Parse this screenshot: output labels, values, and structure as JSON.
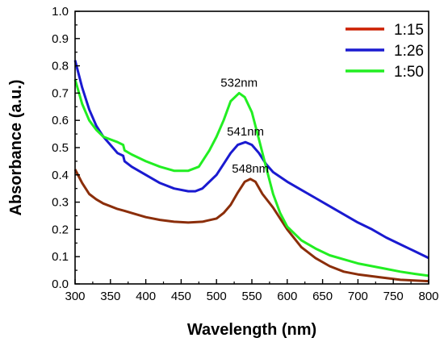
{
  "chart_data": {
    "type": "line",
    "title": "",
    "xlabel": "Wavelength (nm)",
    "ylabel": "Absorbance (a.u.)",
    "xlim": [
      300,
      800
    ],
    "ylim": [
      0.0,
      1.0
    ],
    "x_ticks": [
      "300",
      "350",
      "400",
      "450",
      "500",
      "550",
      "600",
      "650",
      "700",
      "750",
      "800"
    ],
    "y_ticks": [
      "0.0",
      "0.1",
      "0.2",
      "0.3",
      "0.4",
      "0.5",
      "0.6",
      "0.7",
      "0.8",
      "0.9",
      "1.0"
    ],
    "grid": false,
    "legend_position": "top-right",
    "series": [
      {
        "name": "1:15",
        "color": "#8B2E0A",
        "legend_color": "#cc1f00",
        "points": [
          [
            300,
            0.42
          ],
          [
            310,
            0.37
          ],
          [
            320,
            0.33
          ],
          [
            330,
            0.31
          ],
          [
            340,
            0.295
          ],
          [
            350,
            0.285
          ],
          [
            360,
            0.275
          ],
          [
            370,
            0.268
          ],
          [
            380,
            0.26
          ],
          [
            400,
            0.245
          ],
          [
            420,
            0.235
          ],
          [
            440,
            0.228
          ],
          [
            460,
            0.225
          ],
          [
            480,
            0.228
          ],
          [
            500,
            0.24
          ],
          [
            510,
            0.26
          ],
          [
            520,
            0.29
          ],
          [
            530,
            0.335
          ],
          [
            540,
            0.375
          ],
          [
            548,
            0.385
          ],
          [
            555,
            0.375
          ],
          [
            565,
            0.33
          ],
          [
            580,
            0.28
          ],
          [
            600,
            0.2
          ],
          [
            620,
            0.135
          ],
          [
            640,
            0.095
          ],
          [
            660,
            0.065
          ],
          [
            680,
            0.045
          ],
          [
            700,
            0.035
          ],
          [
            730,
            0.025
          ],
          [
            760,
            0.015
          ],
          [
            800,
            0.01
          ]
        ]
      },
      {
        "name": "1:26",
        "color": "#1a1ad0",
        "legend_color": "#1a1ad0",
        "points": [
          [
            300,
            0.82
          ],
          [
            310,
            0.72
          ],
          [
            320,
            0.64
          ],
          [
            330,
            0.58
          ],
          [
            340,
            0.54
          ],
          [
            350,
            0.51
          ],
          [
            360,
            0.48
          ],
          [
            368,
            0.47
          ],
          [
            370,
            0.45
          ],
          [
            380,
            0.43
          ],
          [
            400,
            0.4
          ],
          [
            420,
            0.37
          ],
          [
            440,
            0.35
          ],
          [
            460,
            0.34
          ],
          [
            470,
            0.34
          ],
          [
            480,
            0.35
          ],
          [
            500,
            0.4
          ],
          [
            510,
            0.44
          ],
          [
            520,
            0.48
          ],
          [
            530,
            0.51
          ],
          [
            541,
            0.52
          ],
          [
            550,
            0.51
          ],
          [
            560,
            0.48
          ],
          [
            570,
            0.44
          ],
          [
            580,
            0.41
          ],
          [
            600,
            0.375
          ],
          [
            620,
            0.345
          ],
          [
            640,
            0.315
          ],
          [
            660,
            0.285
          ],
          [
            680,
            0.255
          ],
          [
            700,
            0.225
          ],
          [
            720,
            0.2
          ],
          [
            740,
            0.17
          ],
          [
            760,
            0.145
          ],
          [
            780,
            0.12
          ],
          [
            800,
            0.095
          ]
        ]
      },
      {
        "name": "1:50",
        "color": "#22ee22",
        "legend_color": "#22ee22",
        "points": [
          [
            300,
            0.75
          ],
          [
            310,
            0.66
          ],
          [
            320,
            0.6
          ],
          [
            330,
            0.565
          ],
          [
            340,
            0.54
          ],
          [
            350,
            0.53
          ],
          [
            360,
            0.52
          ],
          [
            368,
            0.51
          ],
          [
            370,
            0.49
          ],
          [
            380,
            0.475
          ],
          [
            400,
            0.45
          ],
          [
            420,
            0.43
          ],
          [
            440,
            0.415
          ],
          [
            460,
            0.415
          ],
          [
            475,
            0.43
          ],
          [
            490,
            0.49
          ],
          [
            500,
            0.54
          ],
          [
            510,
            0.6
          ],
          [
            520,
            0.67
          ],
          [
            532,
            0.7
          ],
          [
            540,
            0.685
          ],
          [
            550,
            0.63
          ],
          [
            560,
            0.53
          ],
          [
            570,
            0.43
          ],
          [
            580,
            0.33
          ],
          [
            590,
            0.26
          ],
          [
            600,
            0.21
          ],
          [
            620,
            0.16
          ],
          [
            640,
            0.13
          ],
          [
            660,
            0.105
          ],
          [
            680,
            0.09
          ],
          [
            700,
            0.075
          ],
          [
            720,
            0.065
          ],
          [
            740,
            0.055
          ],
          [
            760,
            0.045
          ],
          [
            780,
            0.037
          ],
          [
            800,
            0.03
          ]
        ]
      }
    ],
    "annotations": [
      {
        "text": "532nm",
        "x": 532,
        "y": 0.7
      },
      {
        "text": "541nm",
        "x": 541,
        "y": 0.52
      },
      {
        "text": "548nm",
        "x": 548,
        "y": 0.385
      }
    ]
  }
}
